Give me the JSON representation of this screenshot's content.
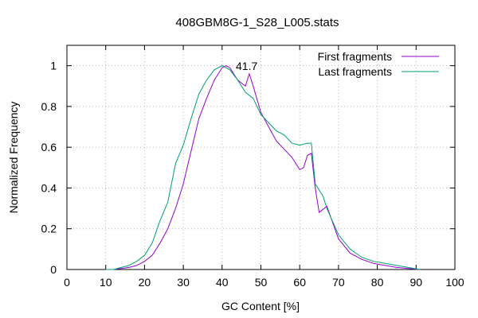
{
  "chart_data": {
    "type": "line",
    "title": "408GBM8G-1_S28_L005.stats",
    "xlabel": "GC Content [%]",
    "ylabel": "Normalized Frequency",
    "xlim": [
      0,
      100
    ],
    "ylim": [
      0,
      1.1
    ],
    "xticks": [
      "0",
      "10",
      "20",
      "30",
      "40",
      "50",
      "60",
      "70",
      "80",
      "90",
      "100"
    ],
    "yticks": [
      "0",
      "0.2",
      "0.4",
      "0.6",
      "0.8",
      "1"
    ],
    "xtick_values": [
      0,
      10,
      20,
      30,
      40,
      50,
      60,
      70,
      80,
      90,
      100
    ],
    "ytick_values": [
      0,
      0.2,
      0.4,
      0.6,
      0.8,
      1
    ],
    "grid": true,
    "legend_position": "top-right",
    "annotation": {
      "text": "41.7",
      "x": 41.7,
      "y": 1.0
    },
    "series": [
      {
        "name": "First fragments",
        "color": "#9400d3",
        "x": [
          10,
          12,
          14,
          16,
          18,
          20,
          22,
          24,
          26,
          28,
          30,
          32,
          34,
          36,
          38,
          40,
          41,
          42,
          44,
          46,
          47,
          48,
          50,
          52,
          54,
          56,
          58,
          60,
          61,
          62,
          63,
          64,
          65,
          67,
          70,
          73,
          76,
          79,
          82,
          85,
          88,
          91
        ],
        "y": [
          0.0,
          0.0,
          0.005,
          0.01,
          0.02,
          0.04,
          0.07,
          0.13,
          0.2,
          0.3,
          0.42,
          0.58,
          0.74,
          0.84,
          0.93,
          0.99,
          1.0,
          0.99,
          0.93,
          0.9,
          0.96,
          0.9,
          0.77,
          0.7,
          0.63,
          0.59,
          0.55,
          0.49,
          0.5,
          0.56,
          0.57,
          0.4,
          0.28,
          0.31,
          0.15,
          0.08,
          0.05,
          0.03,
          0.02,
          0.01,
          0.005,
          0.0
        ]
      },
      {
        "name": "Last fragments",
        "color": "#009e73",
        "x": [
          10,
          12,
          14,
          16,
          18,
          20,
          22,
          24,
          26,
          28,
          30,
          32,
          34,
          36,
          38,
          40,
          42,
          44,
          46,
          48,
          50,
          52,
          54,
          56,
          58,
          60,
          62,
          63,
          64,
          66,
          67,
          70,
          73,
          76,
          79,
          82,
          85,
          88,
          91
        ],
        "y": [
          0.0,
          0.0,
          0.01,
          0.02,
          0.04,
          0.07,
          0.13,
          0.24,
          0.33,
          0.52,
          0.61,
          0.74,
          0.86,
          0.93,
          0.98,
          1.0,
          0.98,
          0.93,
          0.87,
          0.84,
          0.76,
          0.72,
          0.68,
          0.66,
          0.62,
          0.61,
          0.62,
          0.62,
          0.42,
          0.36,
          0.3,
          0.17,
          0.1,
          0.06,
          0.04,
          0.03,
          0.02,
          0.01,
          0.0
        ]
      }
    ]
  }
}
